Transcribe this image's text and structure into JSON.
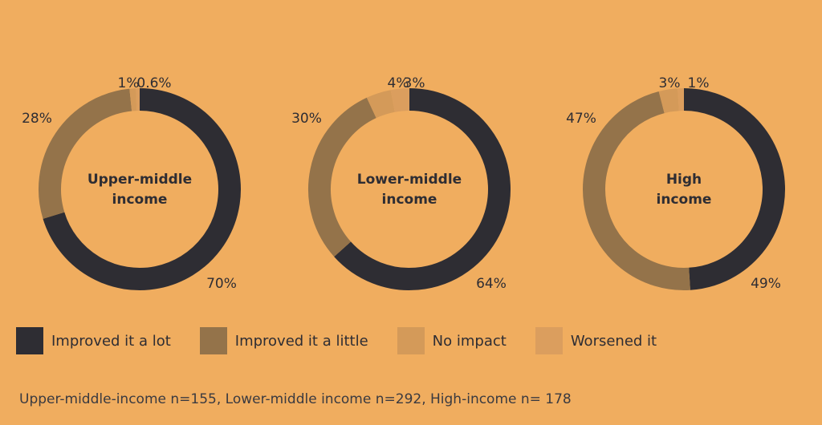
{
  "chart_data": [
    {
      "type": "pie",
      "center_label": [
        "Upper-middle",
        "income"
      ],
      "categories": [
        "Improved it a lot",
        "Improved it a little",
        "No impact",
        "Worsened it"
      ],
      "values": [
        70,
        28,
        1,
        0.6
      ],
      "value_labels": [
        "70%",
        "28%",
        "1%",
        "0.6%"
      ]
    },
    {
      "type": "pie",
      "center_label": [
        "Lower-middle",
        "income"
      ],
      "categories": [
        "Improved it a lot",
        "Improved it a little",
        "No impact",
        "Worsened it"
      ],
      "values": [
        64,
        30,
        4,
        3
      ],
      "value_labels": [
        "64%",
        "30%",
        "4%",
        "3%"
      ]
    },
    {
      "type": "pie",
      "center_label": [
        "High",
        "income"
      ],
      "categories": [
        "Improved it a lot",
        "Improved it a little",
        "No impact",
        "Worsened it"
      ],
      "values": [
        49,
        47,
        3,
        1
      ],
      "value_labels": [
        "49%",
        "47%",
        "3%",
        "1%"
      ]
    }
  ],
  "legend": {
    "placement": "bottom",
    "items": [
      {
        "label": "Improved it a lot",
        "color": "#2E2D33"
      },
      {
        "label": "Improved it a little",
        "color": "#94734A"
      },
      {
        "label": "No impact",
        "color": "#D49A59"
      },
      {
        "label": "Worsened it",
        "color": "#DB9E5E"
      }
    ]
  },
  "footnote": "Upper-middle-income n=155, Lower-middle income n=292, High-income n= 178"
}
